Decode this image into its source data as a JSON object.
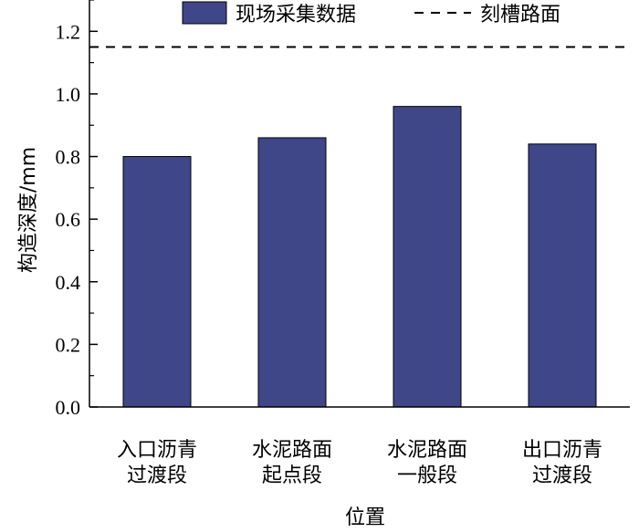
{
  "chart_data": {
    "type": "bar",
    "categories": [
      [
        "入口沥青",
        "过渡段"
      ],
      [
        "水泥路面",
        "起点段"
      ],
      [
        "水泥路面",
        "一般段"
      ],
      [
        "出口沥青",
        "过渡段"
      ]
    ],
    "series": [
      {
        "name": "现场采集数据",
        "values": [
          0.8,
          0.86,
          0.96,
          0.84
        ],
        "color": "#3f4789"
      }
    ],
    "reference_lines": [
      {
        "name": "刻槽路面",
        "value": 1.15,
        "style": "dashed",
        "color": "#000000"
      }
    ],
    "xlabel": "位置",
    "ylabel": "构造深度/mm",
    "ylim": [
      0,
      1.3
    ],
    "yticks": [
      "0.0",
      "0.2",
      "0.4",
      "0.6",
      "0.8",
      "1.0",
      "1.2"
    ],
    "ytick_values": [
      0,
      0.2,
      0.4,
      0.6,
      0.8,
      1.0,
      1.2
    ],
    "grid": false,
    "legend_position": "top"
  }
}
